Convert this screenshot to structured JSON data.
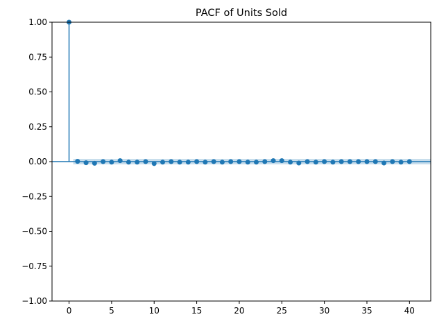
{
  "chart_data": {
    "type": "scatter",
    "subtype": "stem",
    "title": "PACF of Units Sold",
    "xlabel": "",
    "ylabel": "",
    "xlim": [
      -2,
      42.5
    ],
    "ylim": [
      -1.0,
      1.0
    ],
    "x_ticks": [
      0,
      5,
      10,
      15,
      20,
      25,
      30,
      35,
      40
    ],
    "y_ticks": [
      -1.0,
      -0.75,
      -0.5,
      -0.25,
      0.0,
      0.25,
      0.5,
      0.75,
      1.0
    ],
    "x_tick_labels": [
      "0",
      "5",
      "10",
      "15",
      "20",
      "25",
      "30",
      "35",
      "40"
    ],
    "y_tick_labels": [
      "−1.00",
      "−0.75",
      "−0.50",
      "−0.25",
      "0.00",
      "0.25",
      "0.50",
      "0.75",
      "1.00"
    ],
    "grid": false,
    "color": "#1f77b4",
    "series": [
      {
        "x": [
          0,
          1,
          2,
          3,
          4,
          5,
          6,
          7,
          8,
          9,
          10,
          11,
          12,
          13,
          14,
          15,
          16,
          17,
          18,
          19,
          20,
          21,
          22,
          23,
          24,
          25,
          26,
          27,
          28,
          29,
          30,
          31,
          32,
          33,
          34,
          35,
          36,
          37,
          38,
          39,
          40
        ],
        "values": [
          1.0,
          0.002,
          -0.008,
          -0.012,
          0.0,
          -0.004,
          0.007,
          -0.004,
          -0.004,
          0.0,
          -0.014,
          -0.004,
          0.0,
          -0.004,
          -0.004,
          0.0,
          -0.004,
          0.0,
          -0.004,
          0.0,
          0.0,
          -0.004,
          -0.004,
          0.0,
          0.007,
          0.007,
          -0.004,
          -0.01,
          0.0,
          -0.004,
          0.0,
          -0.004,
          0.0,
          0.0,
          0.0,
          0.0,
          0.0,
          -0.01,
          0.0,
          -0.004,
          0.0
        ]
      }
    ]
  }
}
